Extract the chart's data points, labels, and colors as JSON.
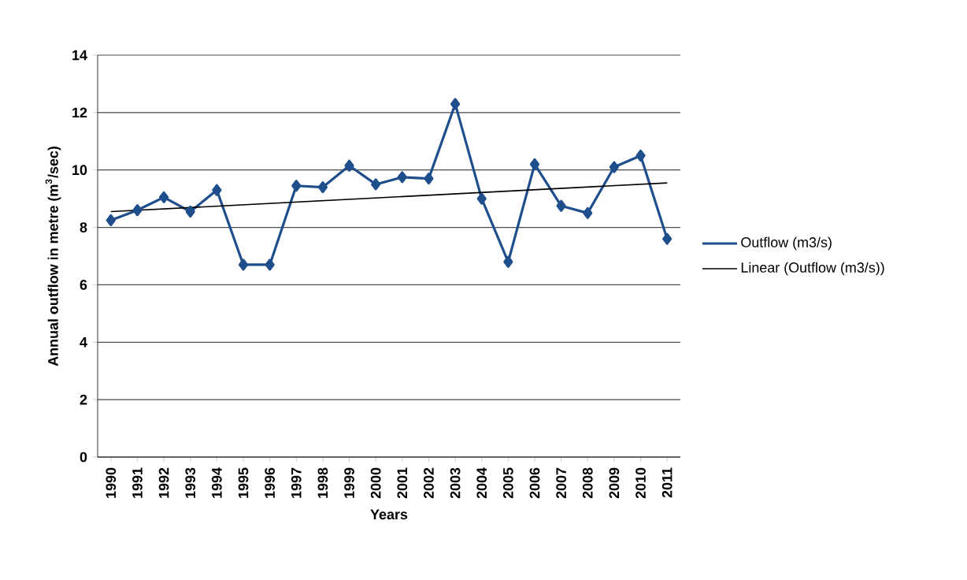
{
  "chart_data": {
    "type": "line",
    "xlabel": "Years",
    "ylabel": "Annual outflow in metre (m$^{3}$/sec)",
    "x": [
      1990,
      1991,
      1992,
      1993,
      1994,
      1995,
      1996,
      1997,
      1998,
      1999,
      2000,
      2001,
      2002,
      2003,
      2004,
      2005,
      2006,
      2007,
      2008,
      2009,
      2010,
      2011
    ],
    "series": [
      {
        "name": "Outflow (m3/s)",
        "color": "#1f4e8c",
        "marker": "diamond",
        "values": [
          8.25,
          8.6,
          9.05,
          8.55,
          9.3,
          6.7,
          6.7,
          9.45,
          9.4,
          10.15,
          9.5,
          9.75,
          9.7,
          12.3,
          9.0,
          6.8,
          10.2,
          8.75,
          8.5,
          10.1,
          10.5,
          7.6
        ]
      },
      {
        "name": "Linear (Outflow (m3/s))",
        "type": "line",
        "color": "#000000",
        "marker": "none",
        "x": [
          1990,
          2011
        ],
        "values": [
          8.55,
          9.55
        ]
      }
    ],
    "xlim": [
      1989.5,
      2011.5
    ],
    "xticks": [
      1990,
      1991,
      1992,
      1993,
      1994,
      1995,
      1996,
      1997,
      1998,
      1999,
      2000,
      2001,
      2002,
      2003,
      2004,
      2005,
      2006,
      2007,
      2008,
      2009,
      2010,
      2011
    ],
    "ylim": [
      0,
      14
    ],
    "yticks": [
      0,
      2,
      4,
      6,
      8,
      10,
      12,
      14
    ],
    "grid": "y",
    "legend": "right"
  }
}
